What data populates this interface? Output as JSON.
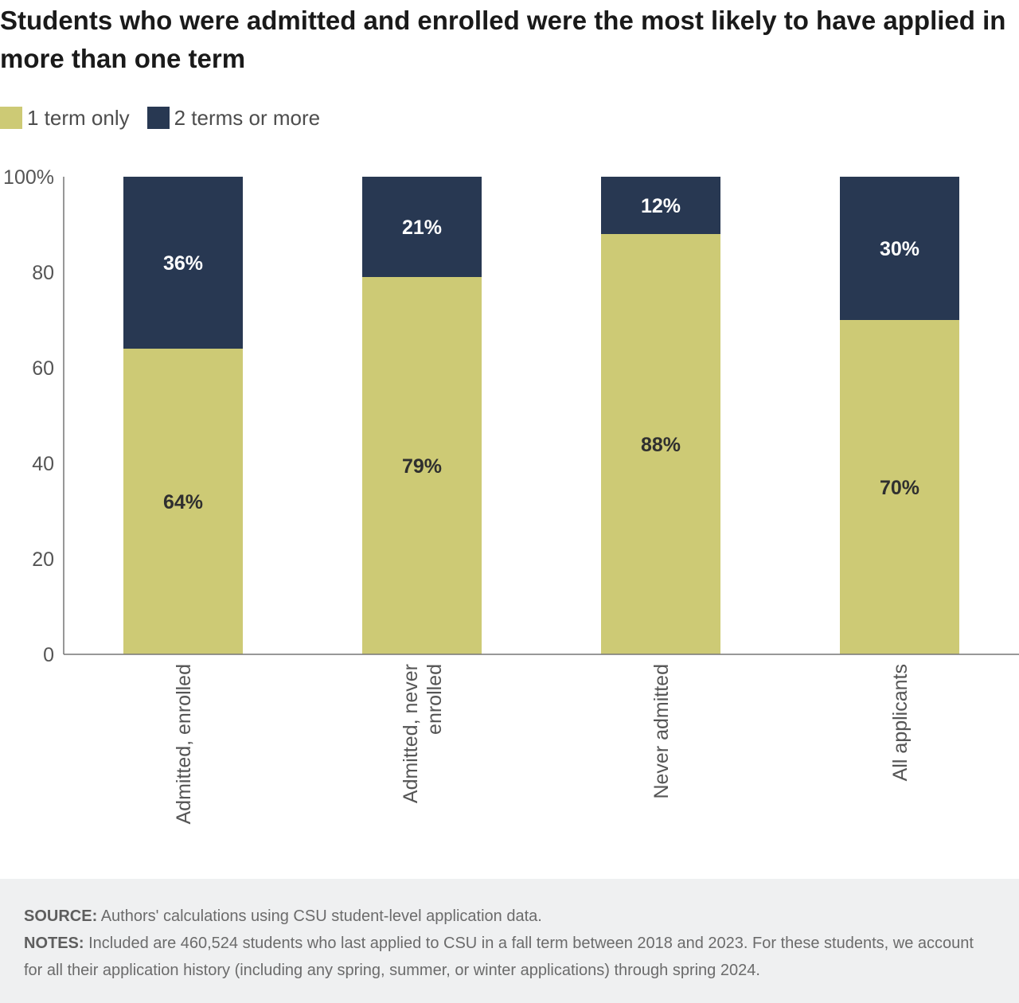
{
  "chart_data": {
    "type": "bar",
    "stacked": true,
    "title": "Students who were admitted and enrolled were the most likely to have applied in more than one term",
    "categories": [
      "Admitted, enrolled",
      "Admitted, never enrolled",
      "Never admitted",
      "All applicants"
    ],
    "series": [
      {
        "name": "1 term only",
        "values": [
          64,
          79,
          88,
          70
        ],
        "labels": [
          "64%",
          "79%",
          "88%",
          "70%"
        ],
        "color": "#cdca75",
        "label_color": "#2f2f2f"
      },
      {
        "name": "2 terms or more",
        "values": [
          36,
          21,
          12,
          30
        ],
        "labels": [
          "36%",
          "21%",
          "12%",
          "30%"
        ],
        "color": "#283852",
        "label_color": "#ffffff"
      }
    ],
    "ylim": [
      0,
      100
    ],
    "yticks": [
      0,
      20,
      40,
      60,
      80,
      100
    ],
    "ytick_labels": [
      "0",
      "20",
      "40",
      "60",
      "80",
      "100%"
    ],
    "legend": "top-left",
    "grid": false
  },
  "footer": {
    "source_label": "SOURCE:",
    "source_text": "Authors' calculations using CSU student-level application data.",
    "notes_label": "NOTES:",
    "notes_text": "Included are 460,524 students who last applied to CSU in a fall term between 2018 and 2023. For these students, we account for all their application history (including any spring, summer, or winter applications) through spring 2024."
  }
}
